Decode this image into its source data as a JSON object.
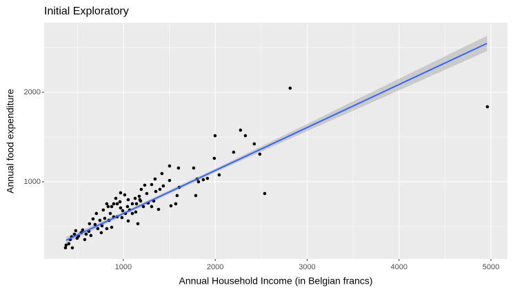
{
  "chart_data": {
    "type": "scatter",
    "title": "Initial Exploratory",
    "x_label": "Annual Household Income (in Belgian francs)",
    "y_label": "Annual food expenditure",
    "point_color": "#000000",
    "x": [
      2815,
      4961,
      2538,
      1998,
      2275,
      2328,
      2425,
      2485,
      2200,
      1990,
      2043,
      1915,
      1870,
      1765,
      1803,
      1818,
      1788,
      1503,
      1600,
      1503,
      1420,
      1435,
      1608,
      1585,
      1518,
      1570,
      1353,
      1330,
      1233,
      1255,
      1188,
      1135,
      1158,
      1053,
      970,
      1015,
      933,
      858,
      820,
      798,
      768,
      722,
      670,
      625,
      557,
      512,
      467,
      422,
      377,
      407,
      445,
      370,
      707,
      782,
      873,
      918,
      963,
      993,
      1045,
      1098,
      1068,
      1128,
      1180,
      1218,
      1270,
      1308,
      1383,
      1398,
      1308,
      1345,
      1195,
      1143,
      843,
      895,
      745,
      692,
      632,
      595,
      542,
      497,
      482,
      437,
      647,
      580,
      760,
      820,
      873,
      933,
      985,
      1023,
      1098,
      835,
      895,
      970,
      1173,
      1053
    ],
    "y": [
      2046,
      1838,
      869,
      1515,
      1577,
      1515,
      1423,
      1308,
      1331,
      1262,
      1077,
      1038,
      1023,
      1154,
      1031,
      1000,
      846,
      1177,
      1154,
      1015,
      1092,
      954,
      938,
      846,
      731,
      754,
      892,
      785,
      962,
      869,
      785,
      662,
      531,
      562,
      708,
      854,
      754,
      646,
      754,
      592,
      508,
      477,
      585,
      446,
      462,
      392,
      415,
      354,
      292,
      308,
      262,
      262,
      646,
      685,
      723,
      815,
      777,
      677,
      723,
      754,
      685,
      815,
      800,
      723,
      762,
      723,
      692,
      915,
      969,
      1031,
      915,
      754,
      569,
      608,
      569,
      523,
      531,
      415,
      431,
      369,
      454,
      385,
      400,
      354,
      431,
      477,
      492,
      608,
      600,
      646,
      646,
      723,
      754,
      877,
      838,
      800
    ],
    "fit_line": {
      "color": "#3366ff",
      "band_color": "#999999",
      "x": [
        377,
        1000,
        2000,
        3000,
        4000,
        4957
      ],
      "values": [
        346,
        645,
        1126,
        1606,
        2087,
        2546
      ],
      "ci_lower": [
        311,
        625,
        1106,
        1566,
        2022,
        2461
      ],
      "ci_upper": [
        381,
        665,
        1146,
        1646,
        2152,
        2631
      ]
    },
    "xlim": [
      138,
      5180
    ],
    "ylim": [
      138,
      2777
    ],
    "xticks": [
      1000,
      2000,
      3000,
      4000,
      5000
    ],
    "yticks": [
      1000,
      2000
    ],
    "x_minor_grid": [
      500,
      1500,
      2500,
      3500,
      4500
    ],
    "y_minor_grid": [
      500,
      1500,
      2500
    ],
    "grid": true
  }
}
